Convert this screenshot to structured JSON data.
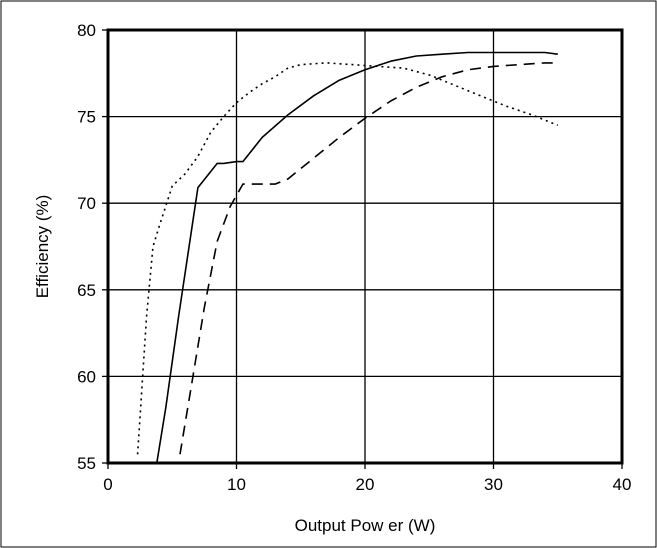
{
  "chart_data": {
    "type": "line",
    "title": "",
    "xlabel": "Output Pow er (W)",
    "ylabel": "Efficiency (%)",
    "xlim": [
      0,
      40
    ],
    "ylim": [
      55,
      80
    ],
    "x_ticks": [
      0,
      10,
      20,
      30,
      40
    ],
    "y_ticks": [
      55,
      60,
      65,
      70,
      75,
      80
    ],
    "x_tick_labels": [
      "0",
      "10",
      "20",
      "30",
      "40"
    ],
    "y_tick_labels": [
      "55",
      "60",
      "65",
      "70",
      "75",
      "80"
    ],
    "grid": true,
    "legend": "none",
    "series": [
      {
        "style": "dotted",
        "color": "#000000",
        "x": [
          2.3,
          3,
          3.5,
          4,
          5,
          6,
          7,
          8,
          9,
          10,
          11,
          12,
          13,
          14,
          15,
          17,
          19,
          21,
          23,
          25,
          27,
          29,
          31,
          33,
          35
        ],
        "y": [
          55.5,
          63.5,
          67.5,
          68.7,
          71,
          71.7,
          72.7,
          74.1,
          75,
          75.8,
          76.4,
          76.9,
          77.3,
          77.8,
          78,
          78.1,
          78,
          77.9,
          77.8,
          77.4,
          76.8,
          76.2,
          75.6,
          75.1,
          74.5
        ]
      },
      {
        "style": "solid",
        "color": "#000000",
        "x": [
          3.8,
          4.5,
          5.5,
          7,
          8.5,
          9,
          10,
          10.5,
          12,
          14,
          16,
          18,
          20,
          22,
          24,
          26,
          28,
          30,
          32,
          34,
          35
        ],
        "y": [
          55,
          58.2,
          63.5,
          70.9,
          72.3,
          72.3,
          72.4,
          72.4,
          73.8,
          75.1,
          76.2,
          77.1,
          77.7,
          78.2,
          78.5,
          78.6,
          78.7,
          78.7,
          78.7,
          78.7,
          78.6
        ]
      },
      {
        "style": "dashed",
        "color": "#000000",
        "x": [
          5.6,
          6.5,
          7.5,
          8.5,
          9.5,
          10.5,
          12,
          13,
          14,
          16,
          18,
          20,
          22,
          24,
          26,
          28,
          30,
          32,
          34,
          35
        ],
        "y": [
          55.5,
          59.5,
          64,
          67.8,
          69.8,
          71.1,
          71.1,
          71.1,
          71.4,
          72.6,
          73.8,
          74.9,
          75.9,
          76.7,
          77.3,
          77.7,
          77.9,
          78,
          78.1,
          78.1
        ]
      }
    ]
  }
}
